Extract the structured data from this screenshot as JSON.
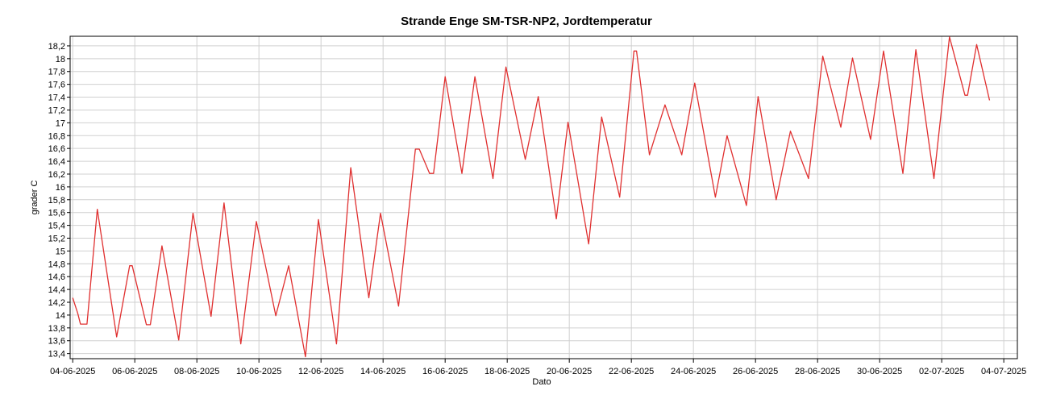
{
  "chart_data": {
    "type": "line",
    "title": "Strande Enge SM-TSR-NP2, Jordtemperatur",
    "x_label": "Dato",
    "y_label": "grader C",
    "x": [
      "2025-06-04T00:00",
      "2025-06-04T04:00",
      "2025-06-04T06:00",
      "2025-06-04T11:00",
      "2025-06-04T19:00",
      "2025-06-05T10:00",
      "2025-06-05T20:00",
      "2025-06-05T22:00",
      "2025-06-06T09:00",
      "2025-06-06T12:00",
      "2025-06-06T21:00",
      "2025-06-07T10:00",
      "2025-06-07T21:00",
      "2025-06-08T11:00",
      "2025-06-08T21:00",
      "2025-06-09T10:00",
      "2025-06-09T22:00",
      "2025-06-10T13:00",
      "2025-06-10T23:00",
      "2025-06-11T12:00",
      "2025-06-11T22:00",
      "2025-06-12T12:00",
      "2025-06-12T23:00",
      "2025-06-13T13:00",
      "2025-06-13T22:00",
      "2025-06-14T12:00",
      "2025-06-15T01:00",
      "2025-06-15T04:00",
      "2025-06-15T12:00",
      "2025-06-15T15:00",
      "2025-06-16T00:00",
      "2025-06-16T13:00",
      "2025-06-16T23:00",
      "2025-06-17T13:00",
      "2025-06-17T23:00",
      "2025-06-18T14:00",
      "2025-06-19T00:00",
      "2025-06-19T14:00",
      "2025-06-19T23:00",
      "2025-06-20T15:00",
      "2025-06-21T01:00",
      "2025-06-21T15:00",
      "2025-06-22T02:00",
      "2025-06-22T04:00",
      "2025-06-22T14:00",
      "2025-06-23T02:00",
      "2025-06-23T15:00",
      "2025-06-24T01:00",
      "2025-06-24T17:00",
      "2025-06-25T02:00",
      "2025-06-25T17:00",
      "2025-06-26T02:00",
      "2025-06-26T16:00",
      "2025-06-27T03:00",
      "2025-06-27T17:00",
      "2025-06-28T04:00",
      "2025-06-28T18:00",
      "2025-06-29T03:00",
      "2025-06-29T17:00",
      "2025-06-30T03:00",
      "2025-06-30T18:00",
      "2025-07-01T04:00",
      "2025-07-01T18:00",
      "2025-07-02T06:00",
      "2025-07-02T18:00",
      "2025-07-02T20:00",
      "2025-07-03T03:00",
      "2025-07-03T13:00"
    ],
    "series": [
      {
        "name": "Jordtemperatur",
        "color": "#e03030",
        "values": [
          14.27,
          14.02,
          13.86,
          13.86,
          15.65,
          13.66,
          14.77,
          14.77,
          13.85,
          13.85,
          15.08,
          13.61,
          15.59,
          13.98,
          15.75,
          13.55,
          15.46,
          13.99,
          14.77,
          13.35,
          15.49,
          13.55,
          16.3,
          14.27,
          15.59,
          14.14,
          16.59,
          16.59,
          16.21,
          16.21,
          17.72,
          16.21,
          17.72,
          16.13,
          17.87,
          16.43,
          17.41,
          15.5,
          17.01,
          15.11,
          17.09,
          15.84,
          18.12,
          18.12,
          16.5,
          17.28,
          16.5,
          17.62,
          15.84,
          16.8,
          15.71,
          17.41,
          15.8,
          16.87,
          16.13,
          18.04,
          16.93,
          18.01,
          16.74,
          18.12,
          16.21,
          18.14,
          16.13,
          18.34,
          17.43,
          17.43,
          18.22,
          17.35
        ]
      }
    ],
    "xlim": [
      "2025-06-03T22:00",
      "2025-07-04T10:30"
    ],
    "xticks": [
      {
        "value": "2025-06-04",
        "label": "04-06-2025"
      },
      {
        "value": "2025-06-06",
        "label": "06-06-2025"
      },
      {
        "value": "2025-06-08",
        "label": "08-06-2025"
      },
      {
        "value": "2025-06-10",
        "label": "10-06-2025"
      },
      {
        "value": "2025-06-12",
        "label": "12-06-2025"
      },
      {
        "value": "2025-06-14",
        "label": "14-06-2025"
      },
      {
        "value": "2025-06-16",
        "label": "16-06-2025"
      },
      {
        "value": "2025-06-18",
        "label": "18-06-2025"
      },
      {
        "value": "2025-06-20",
        "label": "20-06-2025"
      },
      {
        "value": "2025-06-22",
        "label": "22-06-2025"
      },
      {
        "value": "2025-06-24",
        "label": "24-06-2025"
      },
      {
        "value": "2025-06-26",
        "label": "26-06-2025"
      },
      {
        "value": "2025-06-28",
        "label": "28-06-2025"
      },
      {
        "value": "2025-06-30",
        "label": "30-06-2025"
      },
      {
        "value": "2025-07-02",
        "label": "02-07-2025"
      },
      {
        "value": "2025-07-04",
        "label": "04-07-2025"
      }
    ],
    "ylim": [
      13.32,
      18.35
    ],
    "yticks": [
      {
        "value": 13.4,
        "label": "13,4"
      },
      {
        "value": 13.6,
        "label": "13,6"
      },
      {
        "value": 13.8,
        "label": "13,8"
      },
      14,
      {
        "value": 14.2,
        "label": "14,2"
      },
      {
        "value": 14.4,
        "label": "14,4"
      },
      {
        "value": 14.6,
        "label": "14,6"
      },
      {
        "value": 14.8,
        "label": "14,8"
      },
      15,
      {
        "value": 15.2,
        "label": "15,2"
      },
      {
        "value": 15.4,
        "label": "15,4"
      },
      {
        "value": 15.6,
        "label": "15,6"
      },
      {
        "value": 15.8,
        "label": "15,8"
      },
      16,
      {
        "value": 16.2,
        "label": "16,2"
      },
      {
        "value": 16.4,
        "label": "16,4"
      },
      {
        "value": 16.6,
        "label": "16,6"
      },
      {
        "value": 16.8,
        "label": "16,8"
      },
      17,
      {
        "value": 17.2,
        "label": "17,2"
      },
      {
        "value": 17.4,
        "label": "17,4"
      },
      {
        "value": 17.6,
        "label": "17,6"
      },
      {
        "value": 17.8,
        "label": "17,8"
      },
      18,
      {
        "value": 18.2,
        "label": "18,2"
      }
    ],
    "grid": true
  }
}
